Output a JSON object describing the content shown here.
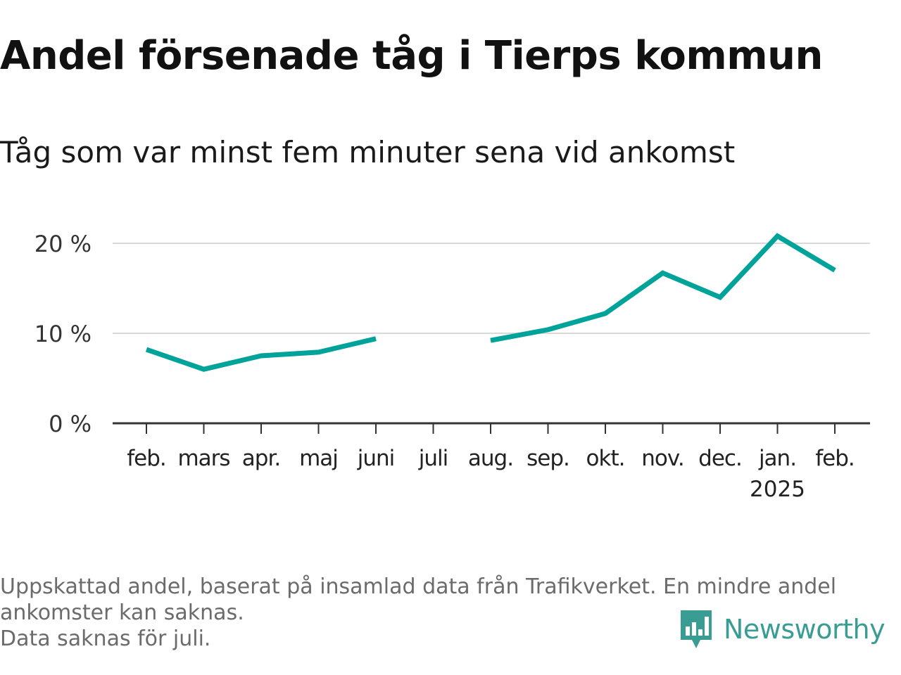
{
  "header": {
    "title": "Andel försenade tåg i Tierps kommun",
    "subtitle": "Tåg som var minst fem minuter sena vid ankomst"
  },
  "chart_data": {
    "type": "line",
    "title": "Andel försenade tåg i Tierps kommun",
    "subtitle": "Tåg som var minst fem minuter sena vid ankomst",
    "categories": [
      "feb.",
      "mars",
      "apr.",
      "maj",
      "juni",
      "juli",
      "aug.",
      "sep.",
      "okt.",
      "nov.",
      "dec.",
      "jan.",
      "feb."
    ],
    "year_label": "2025",
    "year_label_under": "jan.",
    "series": [
      {
        "values": [
          8.2,
          6.0,
          7.5,
          7.9,
          9.4,
          null,
          9.2,
          10.4,
          12.2,
          16.7,
          14.0,
          20.8,
          17.0
        ],
        "color": "#00a39a"
      }
    ],
    "y_ticks": [
      0,
      10,
      20
    ],
    "y_tick_labels": [
      "0 %",
      "10 %",
      "20 %"
    ],
    "ylim": [
      0,
      20
    ],
    "xlabel": "",
    "ylabel": "",
    "grid": true,
    "legend": "none",
    "colors": {
      "line": "#00a39a",
      "grid": "#d9d9d9",
      "axis": "#333333"
    }
  },
  "footer": {
    "note_line1": "Uppskattad andel, baserat på insamlad data från Trafikverket. En mindre andel",
    "note_line2": "ankomster kan saknas.",
    "note_line3": "Data saknas för juli."
  },
  "brand": {
    "name": "Newsworthy",
    "icon": "newsworthy-logo-icon",
    "color": "#3a9d94"
  }
}
